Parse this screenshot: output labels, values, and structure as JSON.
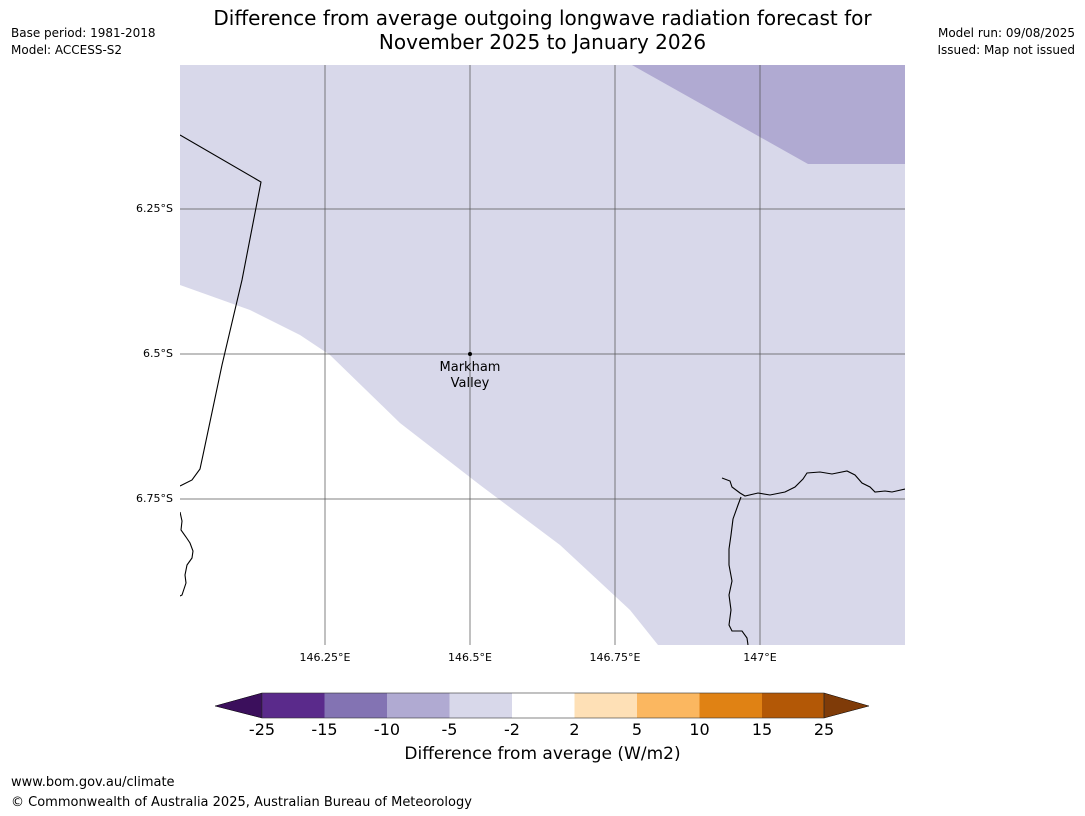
{
  "header": {
    "title_line1": "Difference from average outgoing longwave radiation forecast for",
    "title_line2": "November 2025 to January 2026",
    "base_period": "Base period: 1981-2018",
    "model": "Model: ACCESS-S2",
    "model_run": "Model run: 09/08/2025",
    "issued": "Issued: Map not issued"
  },
  "map": {
    "latitude_labels": [
      "6.25°S",
      "6.5°S",
      "6.75°S"
    ],
    "longitude_labels": [
      "146.25°E",
      "146.5°E",
      "146.75°E",
      "147°E"
    ],
    "place_marker": {
      "line1": "Markham",
      "line2": "Valley"
    },
    "region_colors": {
      "minus_2_to_minus_5": "#d8d8ea",
      "minus_5_to_minus_10": "#b0aad2",
      "minus_2_to_2": "#ffffff"
    }
  },
  "colorbar": {
    "title": "Difference from average (W/m2)",
    "ticks": [
      "-25",
      "-15",
      "-10",
      "-5",
      "-2",
      "2",
      "5",
      "10",
      "15",
      "25"
    ],
    "colors": {
      "below_min": "#3b0f5c",
      "bins": [
        "#5a2a8b",
        "#8373b3",
        "#b0aad2",
        "#d8d8ea",
        "#ffffff",
        "#fee0b6",
        "#fbb760",
        "#e08214",
        "#b35806"
      ],
      "above_max": "#7f3b08"
    }
  },
  "footer": {
    "website": "www.bom.gov.au/climate",
    "copyright": "© Commonwealth of Australia 2025, Australian Bureau of Meteorology"
  }
}
